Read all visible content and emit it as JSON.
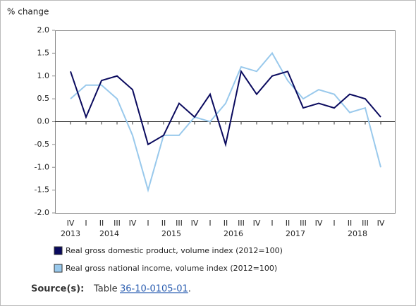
{
  "chart_data": {
    "type": "line",
    "y_label": "% change",
    "categories": [
      "IV",
      "I",
      "II",
      "III",
      "IV",
      "I",
      "II",
      "III",
      "IV",
      "I",
      "II",
      "III",
      "IV",
      "I",
      "II",
      "III",
      "IV",
      "I",
      "II",
      "III",
      "IV"
    ],
    "year_groups": [
      {
        "label": "2013",
        "first": 0,
        "last": 0
      },
      {
        "label": "2014",
        "first": 1,
        "last": 4
      },
      {
        "label": "2015",
        "first": 5,
        "last": 8
      },
      {
        "label": "2016",
        "first": 9,
        "last": 12
      },
      {
        "label": "2017",
        "first": 13,
        "last": 16
      },
      {
        "label": "2018",
        "first": 17,
        "last": 20
      }
    ],
    "series": [
      {
        "name": "Real gross domestic product, volume index (2012=100)",
        "color": "#0a0a5e",
        "values": [
          1.1,
          0.1,
          0.9,
          1.0,
          0.7,
          -0.5,
          -0.3,
          0.4,
          0.1,
          0.6,
          -0.5,
          1.1,
          0.6,
          1.0,
          1.1,
          0.3,
          0.4,
          0.3,
          0.6,
          0.5,
          0.1
        ]
      },
      {
        "name": "Real gross national income, volume index (2012=100)",
        "color": "#99c9ec",
        "values": [
          0.5,
          0.8,
          0.8,
          0.5,
          -0.3,
          -1.5,
          -0.3,
          -0.3,
          0.1,
          0.0,
          0.4,
          1.2,
          1.1,
          1.5,
          0.9,
          0.5,
          0.7,
          0.6,
          0.2,
          0.3,
          -1.0
        ]
      }
    ],
    "ylim": [
      -2.0,
      2.0
    ],
    "yticks": [
      {
        "value": 2.0,
        "label": "2.0"
      },
      1.5,
      {
        "value": 1.0,
        "label": "1.0"
      },
      0.5,
      {
        "value": 0.0,
        "label": "0.0"
      },
      -0.5,
      {
        "value": -1.0,
        "label": "-1.0"
      },
      -1.5,
      {
        "value": -2.0,
        "label": "-2.0"
      }
    ],
    "grid": false,
    "source": {
      "label": "Source(s):",
      "text": "Table",
      "link": "36-10-0105-01",
      "suffix": "."
    }
  }
}
